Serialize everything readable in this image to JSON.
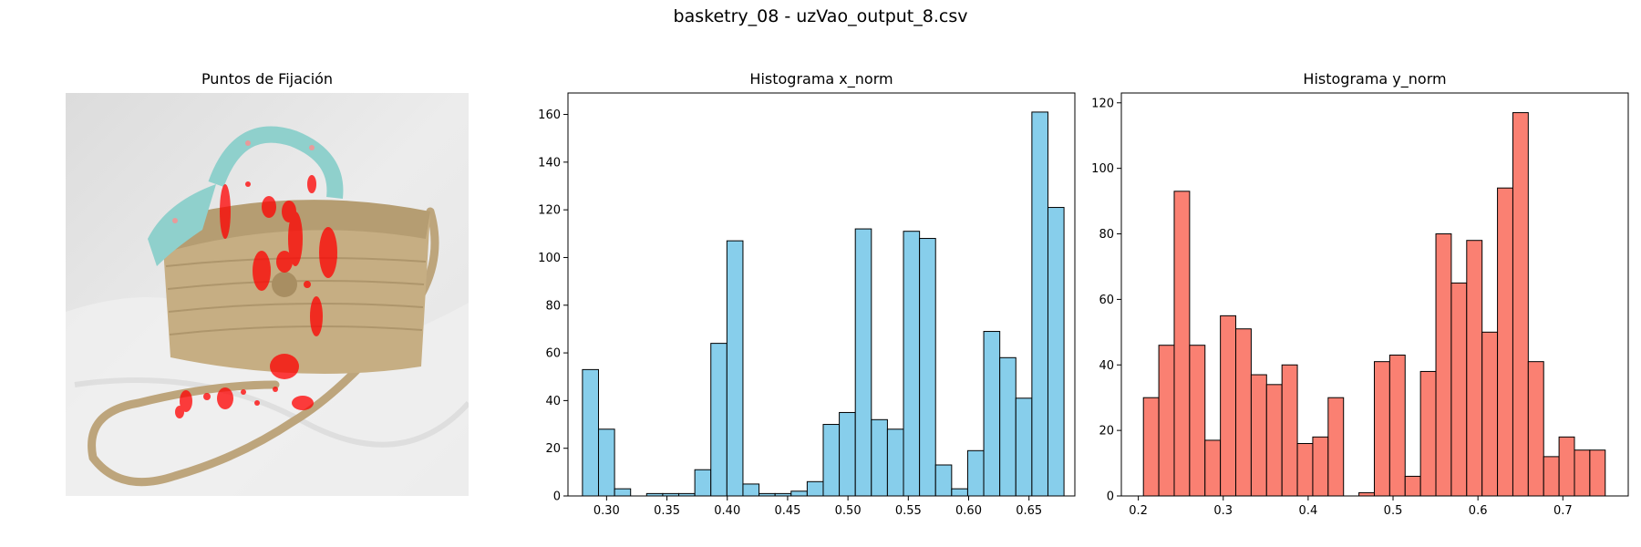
{
  "figure": {
    "title": "basketry_08 - uzVao_output_8.csv"
  },
  "image_panel": {
    "title": "Puntos de Fijación",
    "colors": {
      "fixation": "#ff0000"
    }
  },
  "chart_data": [
    {
      "type": "bar",
      "title": "Histograma x_norm",
      "xlabel": "",
      "ylabel": "",
      "color": "#87ceeb",
      "edgecolor": "#000000",
      "bin_start": 0.28,
      "bin_width": 0.0133,
      "values": [
        53,
        28,
        3,
        0,
        1,
        1,
        1,
        11,
        64,
        107,
        5,
        1,
        1,
        2,
        6,
        30,
        35,
        112,
        32,
        28,
        111,
        108,
        13,
        3,
        19,
        69,
        58,
        41,
        161,
        121
      ],
      "xlim": [
        0.268,
        0.688
      ],
      "ylim": [
        0,
        169
      ],
      "xticks": [
        0.3,
        0.35,
        0.4,
        0.45,
        0.5,
        0.55,
        0.6,
        0.65
      ],
      "xtick_labels": [
        "0.30",
        "0.35",
        "0.40",
        "0.45",
        "0.50",
        "0.55",
        "0.60",
        "0.65"
      ],
      "yticks": [
        0,
        20,
        40,
        60,
        80,
        100,
        120,
        140,
        160
      ],
      "ytick_labels": [
        "0",
        "20",
        "40",
        "60",
        "80",
        "100",
        "120",
        "140",
        "160"
      ]
    },
    {
      "type": "bar",
      "title": "Histograma y_norm",
      "xlabel": "",
      "ylabel": "",
      "color": "#fa8072",
      "edgecolor": "#000000",
      "bin_start": 0.206,
      "bin_width": 0.01813,
      "values": [
        30,
        46,
        93,
        46,
        17,
        55,
        51,
        37,
        34,
        40,
        16,
        18,
        30,
        0,
        1,
        41,
        43,
        6,
        38,
        80,
        65,
        78,
        50,
        94,
        117,
        41,
        12,
        18,
        14,
        14
      ],
      "xlim": [
        0.18,
        0.777
      ],
      "ylim": [
        0,
        123
      ],
      "xticks": [
        0.2,
        0.3,
        0.4,
        0.5,
        0.6,
        0.7
      ],
      "xtick_labels": [
        "0.2",
        "0.3",
        "0.4",
        "0.5",
        "0.6",
        "0.7"
      ],
      "yticks": [
        0,
        20,
        40,
        60,
        80,
        100,
        120
      ],
      "ytick_labels": [
        "0",
        "20",
        "40",
        "60",
        "80",
        "100",
        "120"
      ]
    }
  ]
}
